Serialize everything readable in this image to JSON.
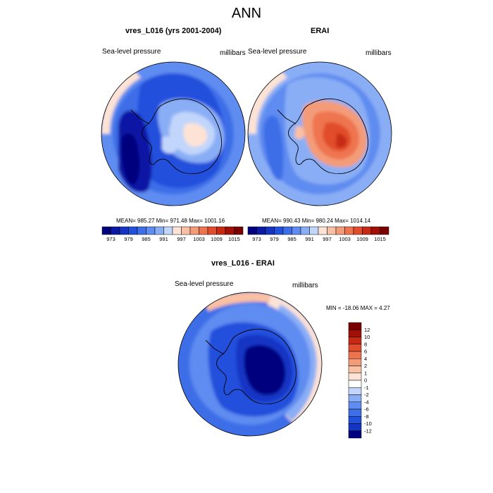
{
  "figure": {
    "title": "ANN"
  },
  "chart_data": [
    {
      "type": "heatmap",
      "projection": "south-polar-stereographic",
      "title": "vres_L016 (yrs 2001-2004)",
      "left_label": "Sea-level pressure",
      "right_label": "millibars",
      "stats_text": "MEAN= 985.27  Min= 971.48  Max= 1001.16",
      "mean": 985.27,
      "min": 971.48,
      "max": 1001.16,
      "colorbar": {
        "orientation": "horizontal",
        "levels": [
          973,
          976,
          979,
          982,
          985,
          988,
          991,
          994,
          997,
          1000,
          1003,
          1006,
          1009,
          1012,
          1015
        ],
        "tick_labels": [
          "973",
          "979",
          "985",
          "991",
          "997",
          "1003",
          "1009",
          "1015"
        ]
      }
    },
    {
      "type": "heatmap",
      "projection": "south-polar-stereographic",
      "title": "ERAI",
      "left_label": "Sea-level pressure",
      "right_label": "millibars",
      "stats_text": "MEAN= 990.43  Min= 980.24  Max= 1014.14",
      "mean": 990.43,
      "min": 980.24,
      "max": 1014.14,
      "colorbar": {
        "orientation": "horizontal",
        "levels": [
          973,
          976,
          979,
          982,
          985,
          988,
          991,
          994,
          997,
          1000,
          1003,
          1006,
          1009,
          1012,
          1015
        ],
        "tick_labels": [
          "973",
          "979",
          "985",
          "991",
          "997",
          "1003",
          "1009",
          "1015"
        ]
      }
    },
    {
      "type": "heatmap",
      "projection": "south-polar-stereographic",
      "title": "vres_L016 - ERAI",
      "left_label": "Sea-level pressure",
      "right_label": "millibars",
      "stats_text": "MIN = -18.06 MAX =   4.27",
      "min": -18.06,
      "max": 4.27,
      "colorbar": {
        "orientation": "vertical",
        "levels": [
          12,
          10,
          8,
          6,
          4,
          2,
          1,
          0,
          -1,
          -2,
          -4,
          -6,
          -8,
          -10,
          -12
        ],
        "tick_labels": [
          "12",
          "10",
          "8",
          "6",
          "4",
          "2",
          "1",
          "0",
          "-1",
          "-2",
          "-4",
          "-6",
          "-8",
          "-10",
          "-12"
        ]
      }
    }
  ],
  "palettes": {
    "abs": [
      "#00007f",
      "#0a18a4",
      "#1534c4",
      "#2150dc",
      "#3d6ee8",
      "#5f8cf0",
      "#8aaef5",
      "#c2d6fb",
      "#fde3d6",
      "#f9c0a4",
      "#f49b78",
      "#ee744f",
      "#e14d2c",
      "#c72a13",
      "#a10f06",
      "#7a0000"
    ],
    "diff": [
      "#7a0000",
      "#a10f06",
      "#c72a13",
      "#e14d2c",
      "#ee744f",
      "#f49b78",
      "#f9c0a4",
      "#fde3d6",
      "#ffffff",
      "#c2d6fb",
      "#8aaef5",
      "#5f8cf0",
      "#3d6ee8",
      "#2150dc",
      "#1534c4",
      "#00007f"
    ]
  }
}
